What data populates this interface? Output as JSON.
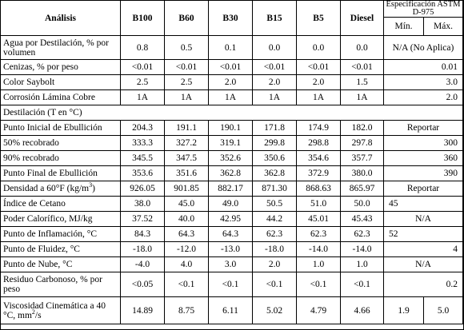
{
  "header": {
    "analysis": "Análisis",
    "columns": [
      "B100",
      "B60",
      "B30",
      "B15",
      "B5",
      "Diesel"
    ],
    "spec_title": "Especificación ASTM D-975",
    "spec_min": "Mín.",
    "spec_max": "Máx."
  },
  "rows": {
    "agua": {
      "label": "Agua por Destilación, % por volumen",
      "values": [
        "0.8",
        "0.5",
        "0.1",
        "0.0",
        "0.0",
        "0.0"
      ],
      "spec": "N/A (No Aplica)"
    },
    "cenizas": {
      "label": "Cenizas, % por peso",
      "values": [
        "<0.01",
        "<0.01",
        "<0.01",
        "<0.01",
        "<0.01",
        "<0.01"
      ],
      "max": "0.01"
    },
    "saybolt": {
      "label": "Color Saybolt",
      "values": [
        "2.5",
        "2.5",
        "2.0",
        "2.0",
        "2.0",
        "1.5"
      ],
      "max": "3.0"
    },
    "corrosion": {
      "label": "Corrosión Lámina Cobre",
      "values": [
        "1A",
        "1A",
        "1A",
        "1A",
        "1A",
        "1A"
      ],
      "max": "2.0"
    },
    "destilacion": {
      "label": "Destilación (T en °C)"
    },
    "inicial": {
      "label": "Punto Inicial de Ebullición",
      "values": [
        "204.3",
        "191.1",
        "190.1",
        "171.8",
        "174.9",
        "182.0"
      ],
      "spec": "Reportar"
    },
    "r50": {
      "label": "50% recobrado",
      "values": [
        "333.3",
        "327.2",
        "319.1",
        "299.8",
        "298.8",
        "297.8"
      ],
      "max": "300"
    },
    "r90": {
      "label": "90% recobrado",
      "values": [
        "345.5",
        "347.5",
        "352.6",
        "350.6",
        "354.6",
        "357.7"
      ],
      "max": "360"
    },
    "final": {
      "label": "Punto Final de Ebullición",
      "values": [
        "353.6",
        "351.6",
        "362.8",
        "362.8",
        "372.9",
        "380.0"
      ],
      "max": "390"
    },
    "densidad": {
      "label": "Densidad a 60°F (kg/m",
      "label_sup": "3",
      "label_end": ")",
      "values": [
        "926.05",
        "901.85",
        "882.17",
        "871.30",
        "868.63",
        "865.97"
      ],
      "spec": "Reportar"
    },
    "cetano": {
      "label": "Índice de Cetano",
      "values": [
        "38.0",
        "45.0",
        "49.0",
        "50.5",
        "51.0",
        "50.0"
      ],
      "min": "45"
    },
    "calorifico": {
      "label": "Poder Calorífico, MJ/kg",
      "values": [
        "37.52",
        "40.0",
        "42.95",
        "44.2",
        "45.01",
        "45.43"
      ],
      "spec": "N/A"
    },
    "inflamacion": {
      "label": "Punto de Inflamación, °C",
      "values": [
        "84.3",
        "64.3",
        "64.3",
        "62.3",
        "62.3",
        "62.3"
      ],
      "min": "52"
    },
    "fluidez": {
      "label": "Punto de Fluidez, °C",
      "values": [
        "-18.0",
        "-12.0",
        "-13.0",
        "-18.0",
        "-14.0",
        "-14.0"
      ],
      "max": "4"
    },
    "nube": {
      "label": "Punto de Nube, °C",
      "values": [
        "-4.0",
        "4.0",
        "3.0",
        "2.0",
        "1.0",
        "1.0"
      ],
      "spec": "N/A"
    },
    "residuo": {
      "label": "Residuo Carbonoso, % por peso",
      "values": [
        "<0.05",
        "<0.1",
        "<0.1",
        "<0.1",
        "<0.1",
        "<0.1"
      ],
      "max": "0.2"
    },
    "viscosidad": {
      "label": "Viscosidad Cinemática a 40 °C, mm",
      "label_sup": "2",
      "label_end": "/s",
      "values": [
        "14.89",
        "8.75",
        "6.11",
        "5.02",
        "4.79",
        "4.66"
      ],
      "min": "1.9",
      "max": "5.0"
    }
  }
}
